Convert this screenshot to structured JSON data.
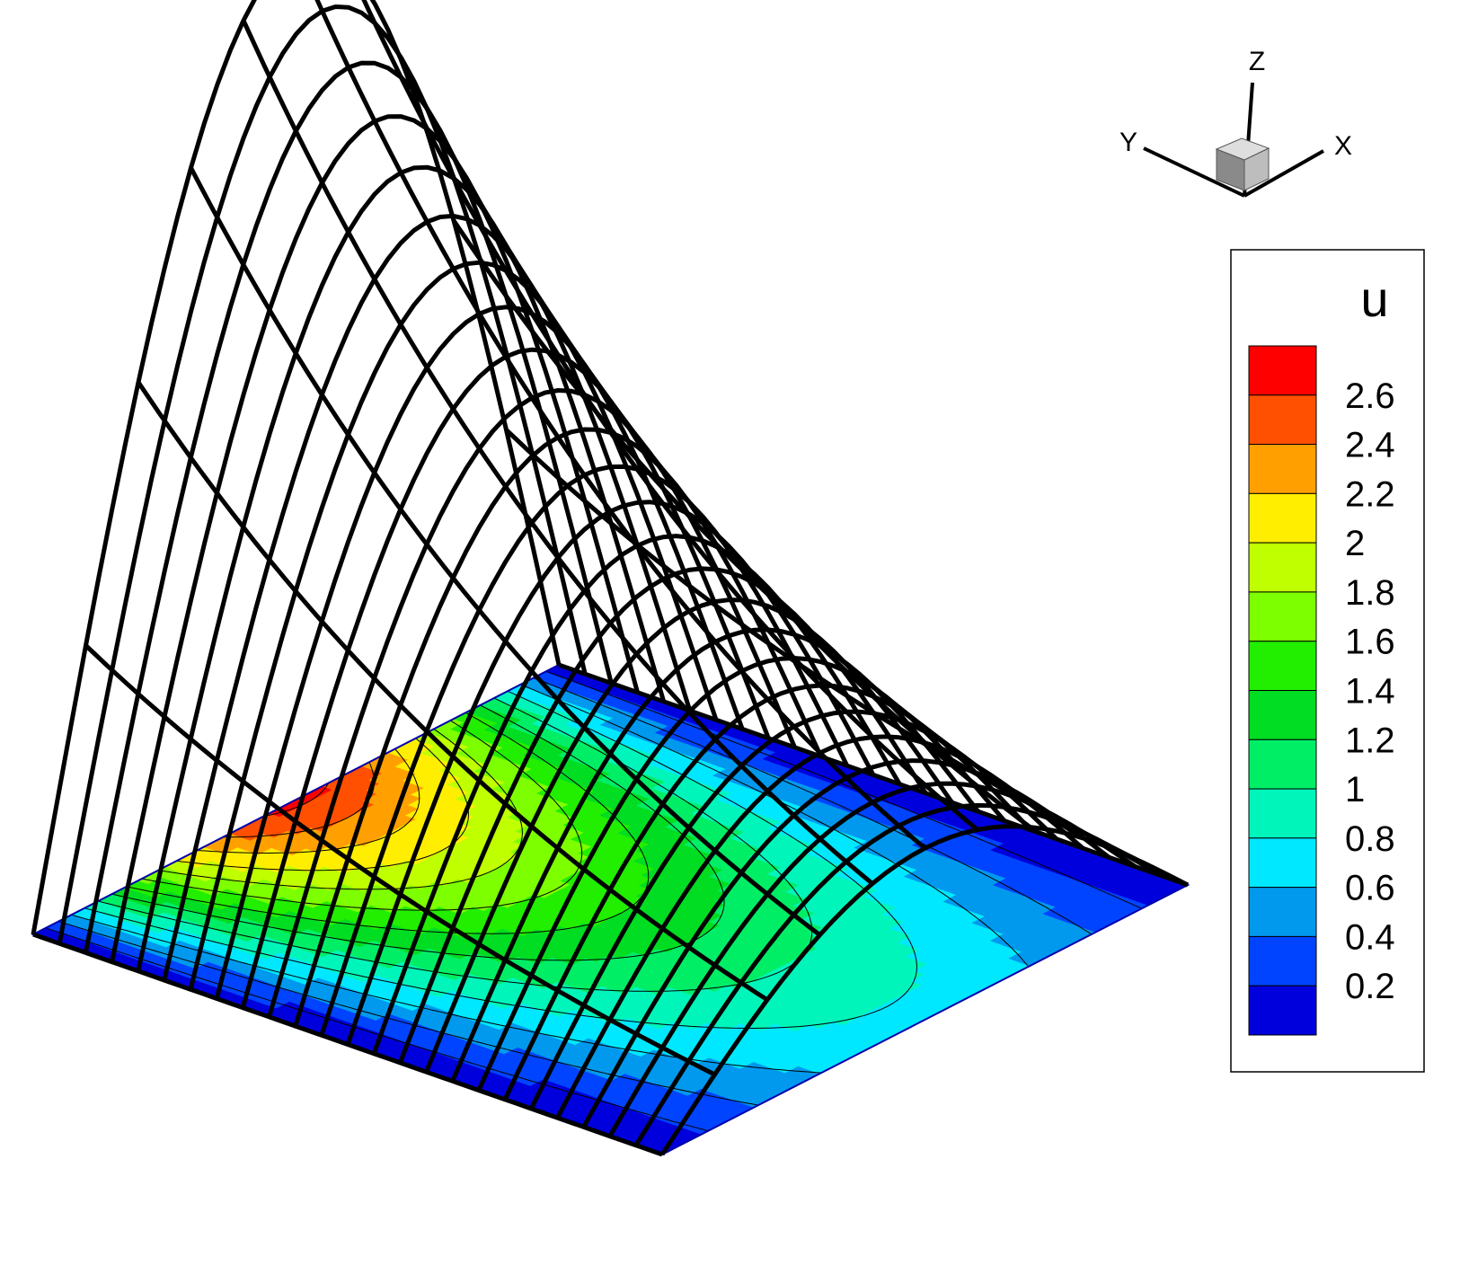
{
  "chart_data": {
    "type": "surface",
    "variable": "u",
    "legend": {
      "title": "u",
      "levels": [
        "2.6",
        "2.4",
        "2.2",
        "2",
        "1.8",
        "1.6",
        "1.4",
        "1.2",
        "1",
        "0.8",
        "0.6",
        "0.4",
        "0.2"
      ],
      "colors": [
        "#ff0000",
        "#ff4f00",
        "#ffa000",
        "#ffee00",
        "#bfff00",
        "#7dff00",
        "#22ee00",
        "#00dd22",
        "#00ee66",
        "#00f5bb",
        "#00e8ff",
        "#0099ee",
        "#0044ff",
        "#0000dd"
      ],
      "position": "right"
    },
    "zrange": [
      0,
      2.7
    ],
    "mesh": {
      "x_lines": 25,
      "y_lines": 11
    }
  },
  "axes_triad": {
    "x_label": "X",
    "y_label": "Y",
    "z_label": "Z"
  }
}
